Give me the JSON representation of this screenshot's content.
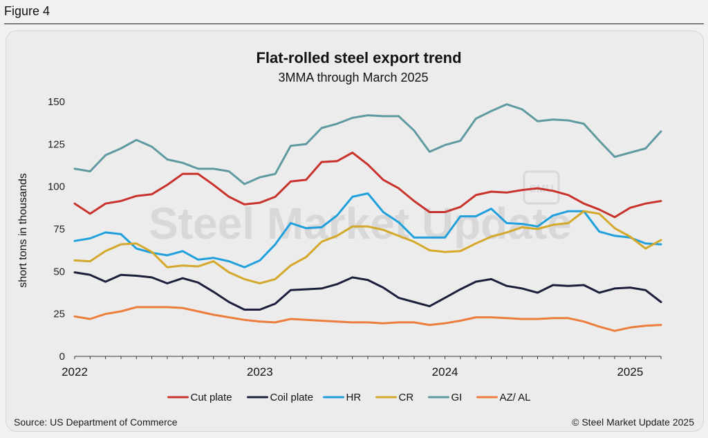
{
  "figure_label": "Figure 4",
  "footer": {
    "source": "Source: US Department of Commerce",
    "copyright": "© Steel Market Update 2025"
  },
  "watermark": {
    "text": "Steel Market Update",
    "badge": "SMU"
  },
  "chart_data": {
    "type": "line",
    "title": "Flat-rolled steel export trend",
    "subtitle": "3MMA through March 2025",
    "xlabel": "",
    "ylabel": "short tons in thousands",
    "ylim": [
      0,
      150
    ],
    "yticks": [
      0,
      25,
      50,
      75,
      100,
      125,
      150
    ],
    "xtick_labels": [
      "2022",
      "2023",
      "2024",
      "2025"
    ],
    "x_start": "2022-01",
    "x_end": "2025-03",
    "grid": false,
    "legend_position": "bottom",
    "colors": {
      "Cut plate": "#c8322a",
      "Coil plate": "#1b1f3b",
      "HR": "#1fa0dc",
      "CR": "#d4a82a",
      "GI": "#5e9aa0",
      "AZ/ AL": "#ec7d3c"
    },
    "series": [
      {
        "name": "Cut plate",
        "values": [
          90,
          84,
          90,
          91.5,
          94.5,
          95.5,
          101,
          107.5,
          107.5,
          101,
          94,
          89.5,
          90.5,
          94,
          103,
          104,
          114.5,
          115,
          120,
          113,
          104,
          99,
          91.5,
          85,
          85,
          88,
          95,
          97,
          96.5,
          98,
          99,
          97.5,
          95,
          90,
          86.5,
          82,
          87.5,
          90,
          91.5
        ]
      },
      {
        "name": "Coil plate",
        "values": [
          49.5,
          48,
          44,
          48,
          47.5,
          46.5,
          43,
          46,
          43.5,
          38,
          32,
          27.5,
          27.5,
          31,
          39,
          39.5,
          40,
          42.5,
          46.5,
          45,
          40.5,
          34.5,
          32,
          29.5,
          34.5,
          39.5,
          44,
          45.5,
          41.5,
          40,
          37.5,
          42,
          41.5,
          42,
          37.5,
          40,
          40.5,
          39,
          32
        ]
      },
      {
        "name": "HR",
        "values": [
          68,
          69.5,
          73,
          72,
          63.5,
          61,
          59.5,
          62,
          57,
          58,
          56,
          52.5,
          56.5,
          66,
          78.5,
          75.5,
          76,
          83,
          94,
          96,
          85,
          79,
          70,
          70,
          70,
          82.5,
          82.5,
          87,
          78.5,
          78,
          76.5,
          83,
          85.5,
          85.5,
          73.5,
          71,
          70,
          66.5,
          66
        ]
      },
      {
        "name": "CR",
        "values": [
          56.5,
          56,
          62,
          66,
          66.5,
          61.5,
          52.5,
          53.5,
          53,
          56,
          49.5,
          45.5,
          43,
          45.5,
          53.5,
          58.5,
          67.5,
          71,
          76.5,
          76.5,
          74.5,
          71,
          67.5,
          62.5,
          61.5,
          62,
          66.5,
          70.5,
          73,
          76,
          75,
          77.5,
          78.5,
          85.5,
          84,
          75.5,
          70.5,
          63.5,
          68.5
        ]
      },
      {
        "name": "GI",
        "values": [
          110.5,
          109,
          118.5,
          122.5,
          127.5,
          123.5,
          116,
          114,
          110.5,
          110.5,
          109,
          101.5,
          105.5,
          107.5,
          124,
          125,
          134.5,
          137,
          140.5,
          142,
          141.5,
          141.5,
          133,
          120.5,
          124.5,
          127,
          140,
          144.5,
          148.5,
          145.5,
          138.5,
          139.5,
          139,
          137,
          127,
          117.5,
          120,
          122.5,
          132.5
        ]
      },
      {
        "name": "AZ/ AL",
        "values": [
          23.5,
          22,
          25,
          26.5,
          29,
          29,
          29,
          28.5,
          26.5,
          24.5,
          23,
          21.5,
          20.5,
          20,
          22,
          21.5,
          21,
          20.5,
          20,
          20,
          19.5,
          20,
          20,
          18.5,
          19.5,
          21,
          23,
          23,
          22.5,
          22,
          22,
          22.5,
          22.5,
          20.5,
          17.5,
          15,
          17,
          18,
          18.5
        ]
      }
    ]
  }
}
